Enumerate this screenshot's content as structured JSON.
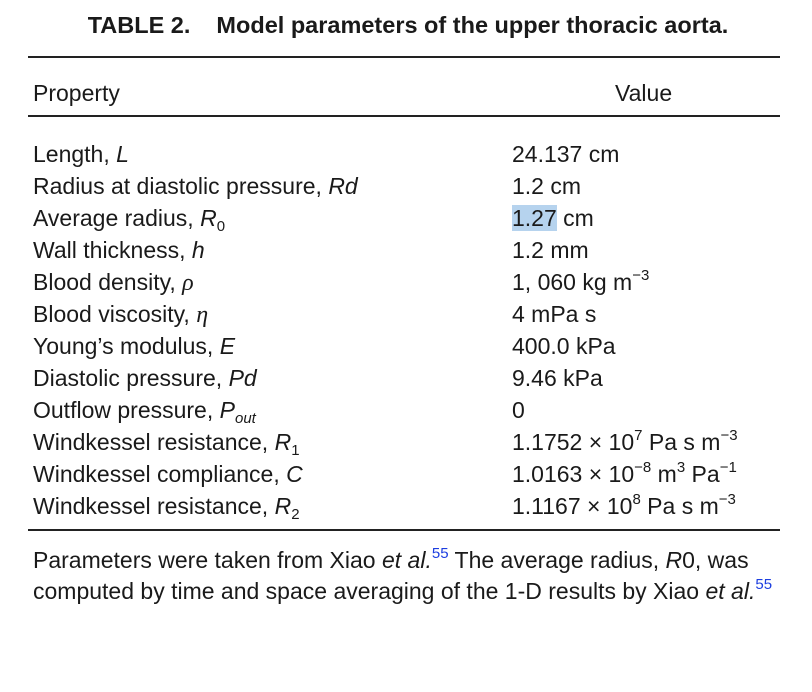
{
  "caption": {
    "label": "TABLE 2.",
    "title": "Model parameters of the upper thoracic aorta."
  },
  "header": {
    "property": "Property",
    "value": "Value"
  },
  "rows": [
    {
      "property": "Length, ",
      "symbol": "L",
      "value": "24.137 cm"
    },
    {
      "property": "Radius at diastolic pressure, ",
      "symbol": "Rd",
      "value": "1.2 cm"
    },
    {
      "property": "Average radius, ",
      "symbol": "R",
      "symbol_sub": "0",
      "value_highlight": "1.27",
      "value": " cm"
    },
    {
      "property": "Wall thickness, ",
      "symbol": "h",
      "value": "1.2 mm"
    },
    {
      "property": "Blood density, ",
      "symbol": "ρ",
      "value": "1, 060 kg m",
      "value_sup": "−3"
    },
    {
      "property": "Blood viscosity, ",
      "symbol": "η",
      "value": "4 mPa s"
    },
    {
      "property": "Young’s modulus, ",
      "symbol": "E",
      "value": "400.0 kPa"
    },
    {
      "property": "Diastolic pressure, ",
      "symbol": "Pd",
      "value": "9.46 kPa"
    },
    {
      "property": "Outflow pressure, ",
      "symbol": "P",
      "symbol_sub": "out",
      "value": "0"
    },
    {
      "property": "Windkessel resistance, ",
      "symbol": "R",
      "symbol_sub": "1",
      "value_mantissa": "1.1752 × 10",
      "value_exp": "7",
      "value_unit": " Pa s m",
      "value_unit_exp": "−3"
    },
    {
      "property": "Windkessel compliance, ",
      "symbol": "C",
      "value_mantissa": "1.0163 × 10",
      "value_exp": "−8",
      "value_unit": " m",
      "value_unit_exp": "3",
      "value_unit2": " Pa",
      "value_unit2_exp": "−1"
    },
    {
      "property": "Windkessel resistance, ",
      "symbol": "R",
      "symbol_sub": "2",
      "value_mantissa": "1.1167 × 10",
      "value_exp": "8",
      "value_unit": " Pa s m",
      "value_unit_exp": "−3"
    }
  ],
  "footnote": {
    "part1": "Parameters were taken from Xiao ",
    "etal": "et al.",
    "ref": "55",
    "part2": " The average radius, ",
    "symbol": "R",
    "symbol_rest": "0",
    "part3": ", was computed by time and space averaging of the 1-D results by Xiao ",
    "etal2": "et al.",
    "ref2": "55"
  },
  "colors": {
    "highlight": "#b6d3ee",
    "reference_link": "#1c3ee0",
    "rule": "#222222"
  }
}
